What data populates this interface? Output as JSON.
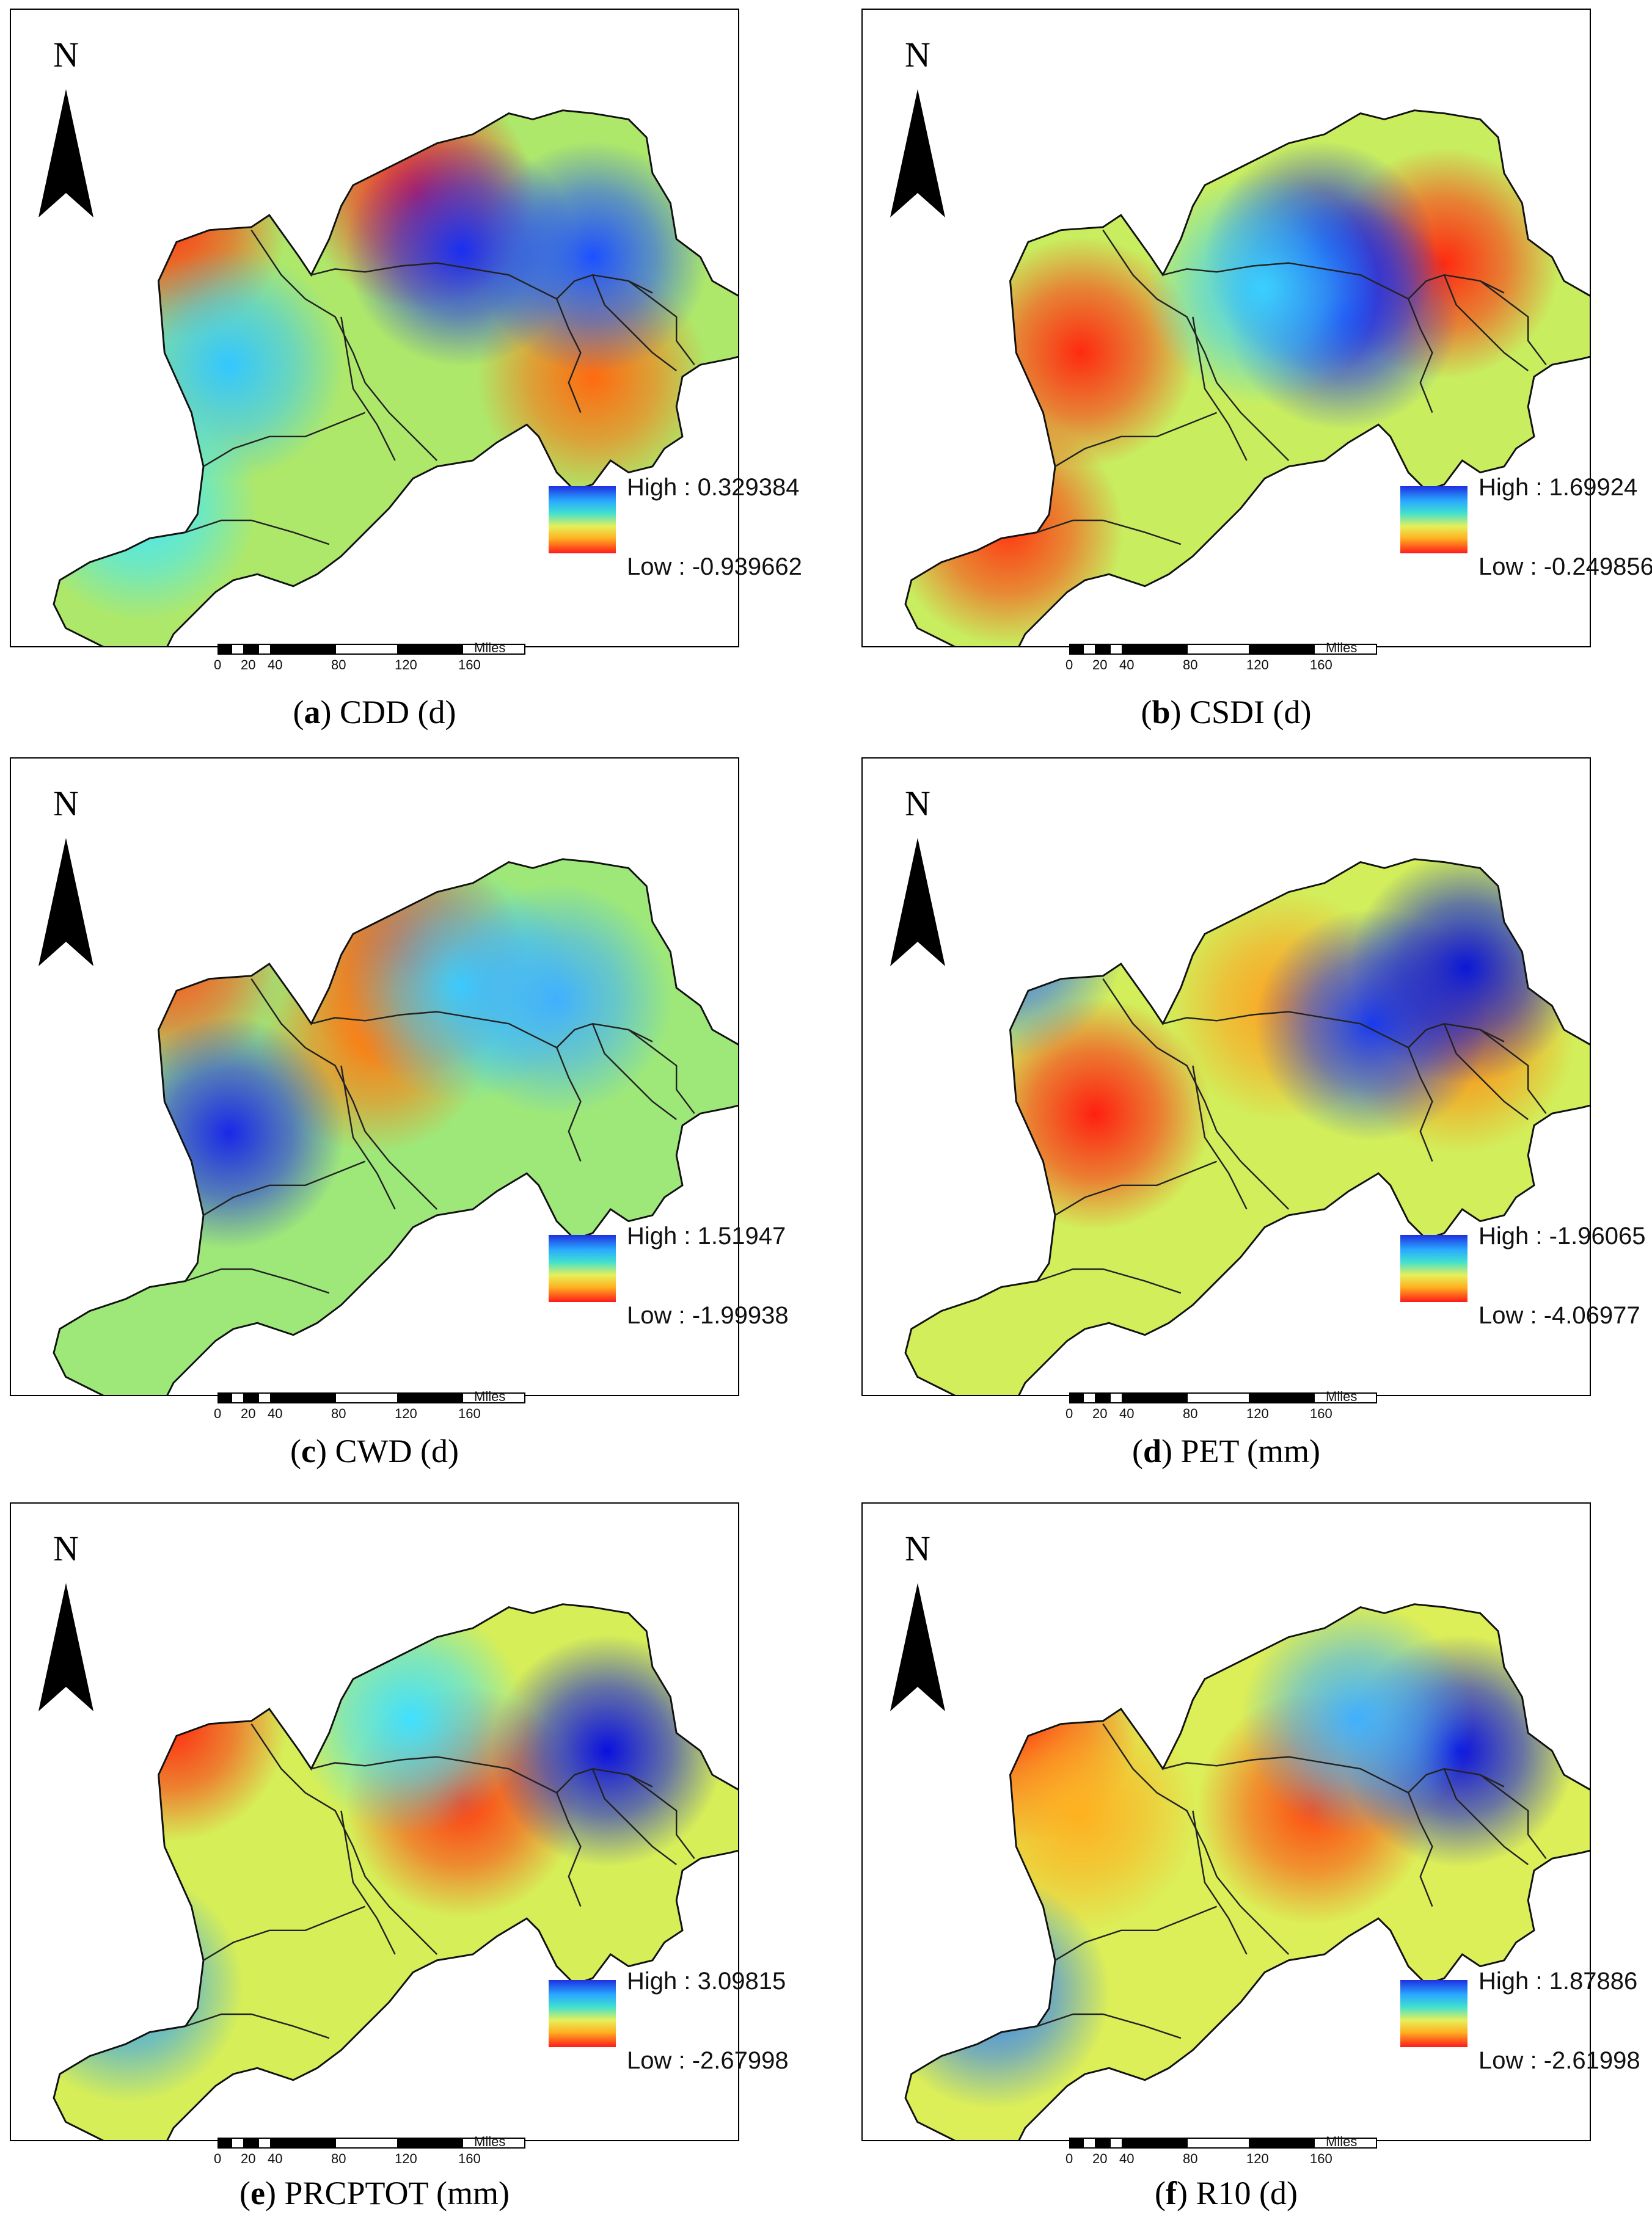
{
  "north_label": "N",
  "scale_units": "Miles",
  "scale_ticks": [
    "0",
    "20",
    "40",
    "80",
    "120",
    "160"
  ],
  "panels": [
    {
      "id": "a",
      "letter": "a",
      "title": "CDD (d)",
      "high": "High : 0.329384",
      "low": "Low : -0.939662",
      "hot": [
        [
          0.22,
          0.3,
          "#ff3b10"
        ],
        [
          0.56,
          0.25,
          "#ff1a1a"
        ],
        [
          0.8,
          0.54,
          "#ff6a10"
        ]
      ],
      "cold": [
        [
          0.62,
          0.34,
          "#1a2ff0"
        ],
        [
          0.8,
          0.35,
          "#1e50ff"
        ],
        [
          0.3,
          0.52,
          "#33c7ff"
        ],
        [
          0.18,
          0.74,
          "#40e8ff"
        ]
      ],
      "base": "#aee86a"
    },
    {
      "id": "b",
      "letter": "b",
      "title": "CSDI (d)",
      "high": "High : 1.69924",
      "low": "Low : -0.249856",
      "hot": [
        [
          0.3,
          0.5,
          "#ff2a10"
        ],
        [
          0.2,
          0.78,
          "#ff3a12"
        ],
        [
          0.8,
          0.36,
          "#ff2a10"
        ]
      ],
      "cold": [
        [
          0.63,
          0.35,
          "#1018e0"
        ],
        [
          0.66,
          0.44,
          "#1a2ff0"
        ],
        [
          0.55,
          0.4,
          "#3ad0ff"
        ]
      ],
      "base": "#c8ee60"
    },
    {
      "id": "c",
      "letter": "c",
      "title": "CWD (d)",
      "high": "High : 1.51947",
      "low": "Low : -1.99938",
      "hot": [
        [
          0.22,
          0.28,
          "#ff5018"
        ],
        [
          0.55,
          0.28,
          "#ff3a10"
        ],
        [
          0.5,
          0.4,
          "#ff7a10"
        ]
      ],
      "cold": [
        [
          0.3,
          0.55,
          "#1a28e8"
        ],
        [
          0.62,
          0.32,
          "#3ad0ff"
        ],
        [
          0.75,
          0.34,
          "#40b0ff"
        ]
      ],
      "base": "#9ee87a"
    },
    {
      "id": "d",
      "letter": "d",
      "title": "PET (mm)",
      "high": "High : -1.96065",
      "low": "Low : -4.06977",
      "hot": [
        [
          0.32,
          0.52,
          "#ff2010"
        ],
        [
          0.58,
          0.35,
          "#ffa020"
        ],
        [
          0.82,
          0.4,
          "#ff8a10"
        ]
      ],
      "cold": [
        [
          0.2,
          0.25,
          "#2a6fff"
        ],
        [
          0.7,
          0.38,
          "#1a3cf0"
        ],
        [
          0.83,
          0.29,
          "#0a18d8"
        ]
      ],
      "base": "#d2ee5a"
    },
    {
      "id": "e",
      "letter": "e",
      "title": "PRCPTOT (mm)",
      "high": "High : 3.09815",
      "low": "Low : -2.67998",
      "hot": [
        [
          0.22,
          0.31,
          "#ff2a10"
        ],
        [
          0.62,
          0.43,
          "#ff3a10"
        ]
      ],
      "cold": [
        [
          0.82,
          0.35,
          "#0a10e0"
        ],
        [
          0.16,
          0.72,
          "#2a9cff"
        ],
        [
          0.55,
          0.3,
          "#40e0ff"
        ]
      ],
      "base": "#d6ee58"
    },
    {
      "id": "f",
      "letter": "f",
      "title": "R10 (d)",
      "high": "High : 1.87886",
      "low": "Low : -2.61998",
      "hot": [
        [
          0.22,
          0.31,
          "#ff2a10"
        ],
        [
          0.62,
          0.44,
          "#ff4a10"
        ],
        [
          0.3,
          0.45,
          "#ffb020"
        ]
      ],
      "cold": [
        [
          0.82,
          0.35,
          "#0a10e0"
        ],
        [
          0.18,
          0.73,
          "#2a7cff"
        ],
        [
          0.68,
          0.3,
          "#40b0ff"
        ]
      ],
      "base": "#dcee58"
    }
  ]
}
